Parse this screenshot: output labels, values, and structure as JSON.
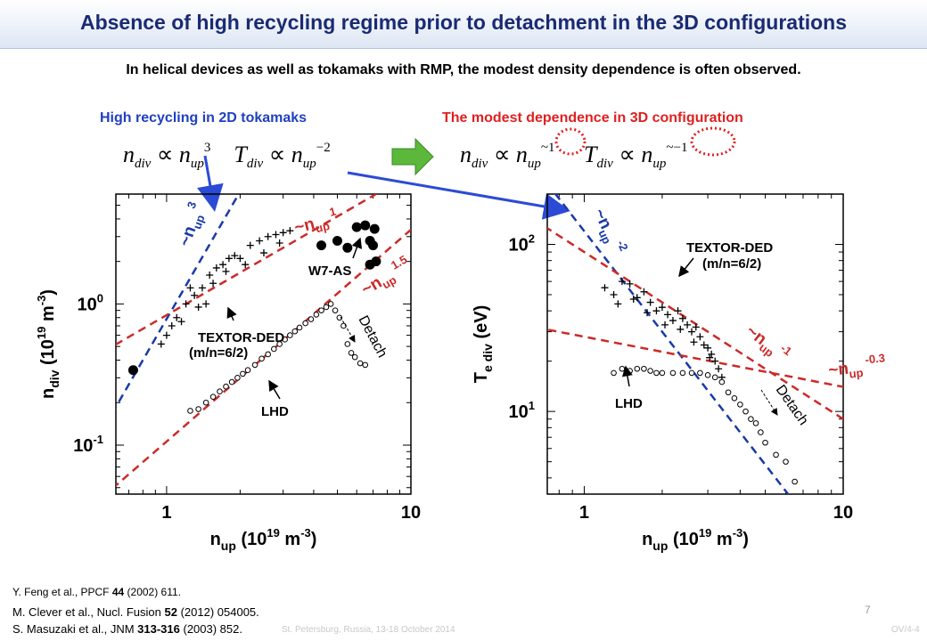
{
  "slide": {
    "title": "Absence of high recycling regime prior to detachment in the 3D configurations",
    "subtitle": "In helical devices as well as tokamaks with RMP, the modest density dependence is often observed.",
    "left_header": "High recycling in 2D tokamaks",
    "right_header": "The modest dependence in 3D configuration",
    "eq_2d": {
      "n_div": "n",
      "div": "div",
      "prop": "∝",
      "n_up": "n",
      "up": "up",
      "exp_n": "3",
      "T_div": "T",
      "exp_T": "−2"
    },
    "eq_3d": {
      "n_div": "n",
      "div": "div",
      "prop": "∝",
      "n_up": "n",
      "up": "up",
      "exp_n": "~1",
      "T_div": "T",
      "exp_T": "~−1"
    },
    "arrow_color": "#5cb83a",
    "references": {
      "r1": {
        "text_a": "Y. Feng et al., PPCF ",
        "bold": "44",
        "text_b": " (2002) 611."
      },
      "r2": {
        "text_a": "M. Clever et al., Nucl. Fusion ",
        "bold": "52",
        "text_b": " (2012) 054005."
      },
      "r3": {
        "text_a": "S. Masuzaki et al., JNM ",
        "bold": "313-316",
        "text_b": " (2003) 852."
      }
    },
    "footer_left": "St. Petersburg, Russia, 13-18 October 2014",
    "footer_right": "OV/4-4",
    "page_number": "7"
  },
  "chart_data": [
    {
      "type": "scatter",
      "title": "",
      "xlabel": "n_up (10^19 m^-3)",
      "ylabel": "n_div (10^19 m^-3)",
      "xscale": "log",
      "yscale": "log",
      "xlim": [
        0.62,
        10
      ],
      "ylim": [
        0.045,
        6
      ],
      "xticks": [
        "1",
        "10"
      ],
      "yticks": [
        "10^0",
        "10^-1"
      ],
      "series": [
        {
          "name": "TEXTOR-DED (m/n=6/2)",
          "marker": "plus",
          "points": [
            [
              0.95,
              0.52
            ],
            [
              1.0,
              0.6
            ],
            [
              1.05,
              0.7
            ],
            [
              1.1,
              0.8
            ],
            [
              1.2,
              1.0
            ],
            [
              1.3,
              1.15
            ],
            [
              1.4,
              1.3
            ],
            [
              1.5,
              1.6
            ],
            [
              1.6,
              1.8
            ],
            [
              1.7,
              1.9
            ],
            [
              1.8,
              2.1
            ],
            [
              1.9,
              2.2
            ],
            [
              2.0,
              2.1
            ],
            [
              2.2,
              2.6
            ],
            [
              2.4,
              2.8
            ],
            [
              2.6,
              3.0
            ],
            [
              2.8,
              3.1
            ],
            [
              3.0,
              3.2
            ],
            [
              1.25,
              1.3
            ],
            [
              1.55,
              1.4
            ],
            [
              1.75,
              1.7
            ],
            [
              2.1,
              1.9
            ],
            [
              2.5,
              2.3
            ],
            [
              2.9,
              2.7
            ],
            [
              1.15,
              0.75
            ],
            [
              1.35,
              0.95
            ],
            [
              1.45,
              1.0
            ],
            [
              3.2,
              3.3
            ]
          ]
        },
        {
          "name": "W7-AS",
          "marker": "filled-circle",
          "points": [
            [
              0.73,
              0.34
            ],
            [
              4.3,
              2.6
            ],
            [
              5.0,
              2.8
            ],
            [
              5.5,
              2.5
            ],
            [
              6.0,
              3.5
            ],
            [
              6.5,
              3.6
            ],
            [
              6.8,
              2.8
            ],
            [
              7.0,
              2.6
            ],
            [
              7.2,
              2.0
            ],
            [
              6.8,
              1.9
            ],
            [
              7.1,
              3.4
            ]
          ]
        },
        {
          "name": "LHD",
          "marker": "open-circle",
          "points": [
            [
              1.25,
              0.175
            ],
            [
              1.35,
              0.18
            ],
            [
              1.45,
              0.2
            ],
            [
              1.55,
              0.22
            ],
            [
              1.65,
              0.24
            ],
            [
              1.75,
              0.26
            ],
            [
              1.85,
              0.28
            ],
            [
              1.95,
              0.3
            ],
            [
              2.05,
              0.32
            ],
            [
              2.15,
              0.34
            ],
            [
              2.3,
              0.37
            ],
            [
              2.45,
              0.41
            ],
            [
              2.6,
              0.44
            ],
            [
              2.75,
              0.48
            ],
            [
              2.9,
              0.52
            ],
            [
              3.05,
              0.56
            ],
            [
              3.2,
              0.6
            ],
            [
              3.35,
              0.64
            ],
            [
              3.5,
              0.68
            ],
            [
              3.7,
              0.73
            ],
            [
              3.9,
              0.78
            ],
            [
              4.1,
              0.84
            ],
            [
              4.3,
              0.9
            ],
            [
              4.5,
              0.95
            ],
            [
              4.7,
              1.0
            ],
            [
              4.9,
              0.9
            ],
            [
              5.1,
              0.8
            ],
            [
              5.3,
              0.7
            ],
            [
              5.5,
              0.52
            ],
            [
              5.7,
              0.45
            ],
            [
              5.9,
              0.42
            ],
            [
              6.2,
              0.38
            ],
            [
              6.5,
              0.37
            ]
          ]
        }
      ],
      "fit_lines": [
        {
          "label": "~n_up 3",
          "color": "#1a3aa8",
          "exponent": 3,
          "through": [
            0.75,
            0.33
          ]
        },
        {
          "label": "~n_up 1",
          "color": "#cc2a2a",
          "exponent": 1,
          "through": [
            1.5,
            1.25
          ]
        },
        {
          "label": "~n_up 1.5",
          "color": "#cc2a2a",
          "exponent": 1.5,
          "through": [
            2.0,
            0.3
          ]
        }
      ],
      "annotations": [
        "~n_up 3",
        "~n_up 1",
        "~n_up 1.5",
        "W7-AS",
        "TEXTOR-DED",
        "(m/n=6/2)",
        "LHD",
        "Detach"
      ]
    },
    {
      "type": "scatter",
      "title": "",
      "xlabel": "n_up (10^19 m^-3)",
      "ylabel": "T_e div (eV)",
      "xscale": "log",
      "yscale": "log",
      "xlim": [
        0.72,
        10
      ],
      "ylim": [
        3.2,
        200
      ],
      "xticks": [
        "1",
        "10"
      ],
      "yticks": [
        "10^2",
        "10^1"
      ],
      "series": [
        {
          "name": "TEXTOR-DED (m/n=6/2)",
          "marker": "plus",
          "points": [
            [
              1.2,
              55
            ],
            [
              1.3,
              50
            ],
            [
              1.4,
              60
            ],
            [
              1.5,
              58
            ],
            [
              1.6,
              48
            ],
            [
              1.7,
              52
            ],
            [
              1.8,
              45
            ],
            [
              1.9,
              40
            ],
            [
              2.0,
              42
            ],
            [
              2.1,
              38
            ],
            [
              2.2,
              35
            ],
            [
              2.3,
              40
            ],
            [
              2.4,
              36
            ],
            [
              2.5,
              33
            ],
            [
              2.6,
              30
            ],
            [
              2.7,
              32
            ],
            [
              2.8,
              28
            ],
            [
              2.9,
              25
            ],
            [
              3.0,
              24
            ],
            [
              3.1,
              22
            ],
            [
              3.2,
              20
            ],
            [
              3.3,
              18
            ],
            [
              3.4,
              16
            ],
            [
              1.35,
              44
            ],
            [
              1.55,
              47
            ],
            [
              1.75,
              39
            ],
            [
              2.05,
              33
            ],
            [
              2.35,
              31
            ],
            [
              2.65,
              26
            ],
            [
              3.05,
              21
            ]
          ]
        },
        {
          "name": "LHD",
          "marker": "open-circle",
          "points": [
            [
              1.3,
              17
            ],
            [
              1.4,
              18
            ],
            [
              1.5,
              17.5
            ],
            [
              1.6,
              18
            ],
            [
              1.7,
              18
            ],
            [
              1.8,
              17.5
            ],
            [
              1.9,
              17
            ],
            [
              2.0,
              17
            ],
            [
              2.2,
              17
            ],
            [
              2.4,
              17
            ],
            [
              2.6,
              17
            ],
            [
              2.8,
              17
            ],
            [
              3.0,
              16.5
            ],
            [
              3.2,
              16
            ],
            [
              3.4,
              15
            ],
            [
              3.6,
              13
            ],
            [
              3.8,
              12
            ],
            [
              4.0,
              11
            ],
            [
              4.2,
              10
            ],
            [
              4.4,
              9
            ],
            [
              4.6,
              8.5
            ],
            [
              4.8,
              7.5
            ],
            [
              5.0,
              6.5
            ],
            [
              5.5,
              5.5
            ],
            [
              6.0,
              5
            ],
            [
              6.5,
              3.8
            ]
          ]
        }
      ],
      "fit_lines": [
        {
          "label": "~n_up -2",
          "color": "#1a3aa8",
          "exponent": -2,
          "through": [
            1.0,
            120
          ]
        },
        {
          "label": "~n_up -1",
          "color": "#cc2a2a",
          "exponent": -1,
          "through": [
            1.0,
            90
          ]
        },
        {
          "label": "~n_up -0.3",
          "color": "#cc2a2a",
          "exponent": -0.3,
          "through": [
            1.0,
            28
          ]
        }
      ],
      "annotations": [
        "~n_up -2",
        "~n_up -1",
        "~n_up -0.3",
        "TEXTOR-DED",
        "(m/n=6/2)",
        "LHD",
        "Detach"
      ]
    }
  ]
}
